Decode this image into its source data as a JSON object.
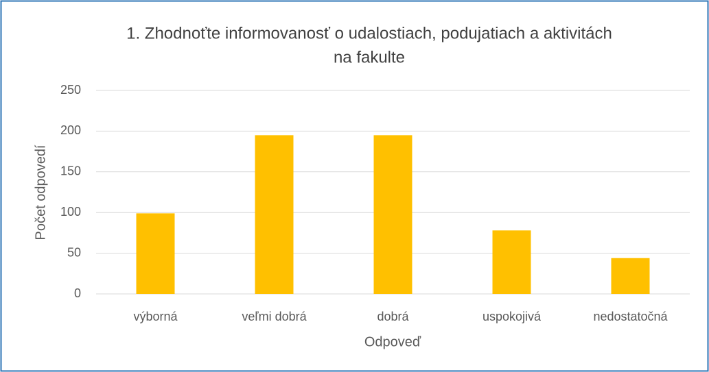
{
  "chart_data": {
    "type": "bar",
    "title": [
      "1. Zhodnoťte informovanosť o udalostiach, podujatiach a aktivitách",
      "na fakulte"
    ],
    "x_label": "Odpoveď",
    "y_label": "Počet odpovedí",
    "categories": [
      "výborná",
      "veľmi dobrá",
      "dobrá",
      "uspokojivá",
      "nedostatočná"
    ],
    "values": [
      99,
      195,
      195,
      78,
      44
    ],
    "color": "#ffc000",
    "ylim": [
      0,
      250
    ],
    "yticks": [
      0,
      50,
      100,
      150,
      200,
      250
    ],
    "grid": true
  }
}
